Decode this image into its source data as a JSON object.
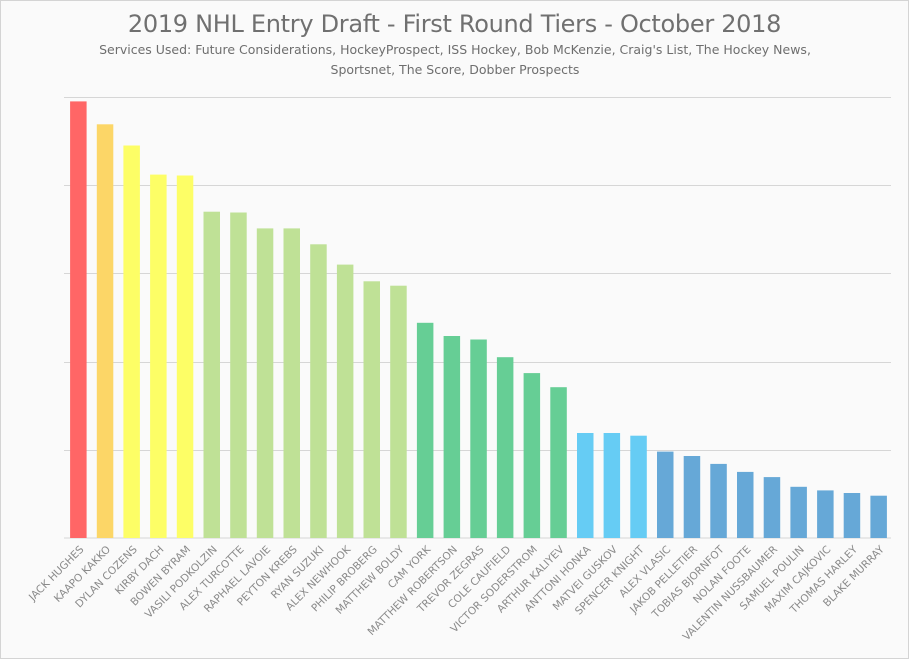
{
  "chart_data": {
    "type": "bar",
    "title": "2019 NHL Entry Draft - First Round Tiers - October 2018",
    "subtitle": "Services Used: Future Considerations, HockeyProspect, ISS Hockey, Bob McKenzie, Craig's List, The Hockey News, Sportsnet, The Score, Dobber Prospects",
    "subtitle_lines": [
      "Services Used: Future Considerations, HockeyProspect, ISS Hockey, Bob McKenzie, Craig's List, The Hockey News,",
      "Sportsnet, The Score, Dobber Prospects"
    ],
    "xlabel": "",
    "ylabel": "",
    "ylim": [
      0,
      5
    ],
    "gridlines": [
      1,
      2,
      3,
      4,
      5
    ],
    "grid": true,
    "legend": "none",
    "categories": [
      "JACK HUGHES",
      "KAAPO KAKKO",
      "DYLAN COZENS",
      "KIRBY DACH",
      "BOWEN BYRAM",
      "VASILI PODKOLZIN",
      "ALEX TURCOTTE",
      "RAPHAEL LAVOIE",
      "PEYTON KREBS",
      "RYAN SUZUKI",
      "ALEX NEWHOOK",
      "PHILIP BROBERG",
      "MATTHEW BOLDY",
      "CAM YORK",
      "MATTHEW ROBERTSON",
      "TREVOR ZEGRAS",
      "COLE CAUFIELD",
      "VICTOR SODERSTROM",
      "ARTHUR KALIYEV",
      "ANTTONI HONKA",
      "MATVEI GUSKOV",
      "SPENCER KNIGHT",
      "ALEX VLASIC",
      "JAKOB PELLETIER",
      "TOBIAS BJORNFOT",
      "NOLAN FOOTE",
      "VALENTIN NUSSBAUMER",
      "SAMUEL POULIN",
      "MAXIM CAJKOVIC",
      "THOMAS HARLEY",
      "BLAKE MURRAY"
    ],
    "values": [
      4.95,
      4.69,
      4.45,
      4.12,
      4.11,
      3.7,
      3.69,
      3.51,
      3.51,
      3.33,
      3.1,
      2.91,
      2.86,
      2.44,
      2.29,
      2.25,
      2.05,
      1.87,
      1.71,
      1.19,
      1.19,
      1.16,
      0.98,
      0.93,
      0.84,
      0.75,
      0.69,
      0.58,
      0.54,
      0.51,
      0.48
    ],
    "tiers": [
      1,
      2,
      3,
      3,
      3,
      4,
      4,
      4,
      4,
      4,
      4,
      4,
      4,
      5,
      5,
      5,
      5,
      5,
      5,
      6,
      6,
      6,
      7,
      7,
      7,
      7,
      7,
      7,
      7,
      7,
      7
    ],
    "tier_colors": {
      "1": "#ff6666",
      "2": "#fcd667",
      "3": "#fdfe66",
      "4": "#bfe196",
      "5": "#66ce95",
      "6": "#66ccf4",
      "7": "#66a8d7"
    }
  }
}
